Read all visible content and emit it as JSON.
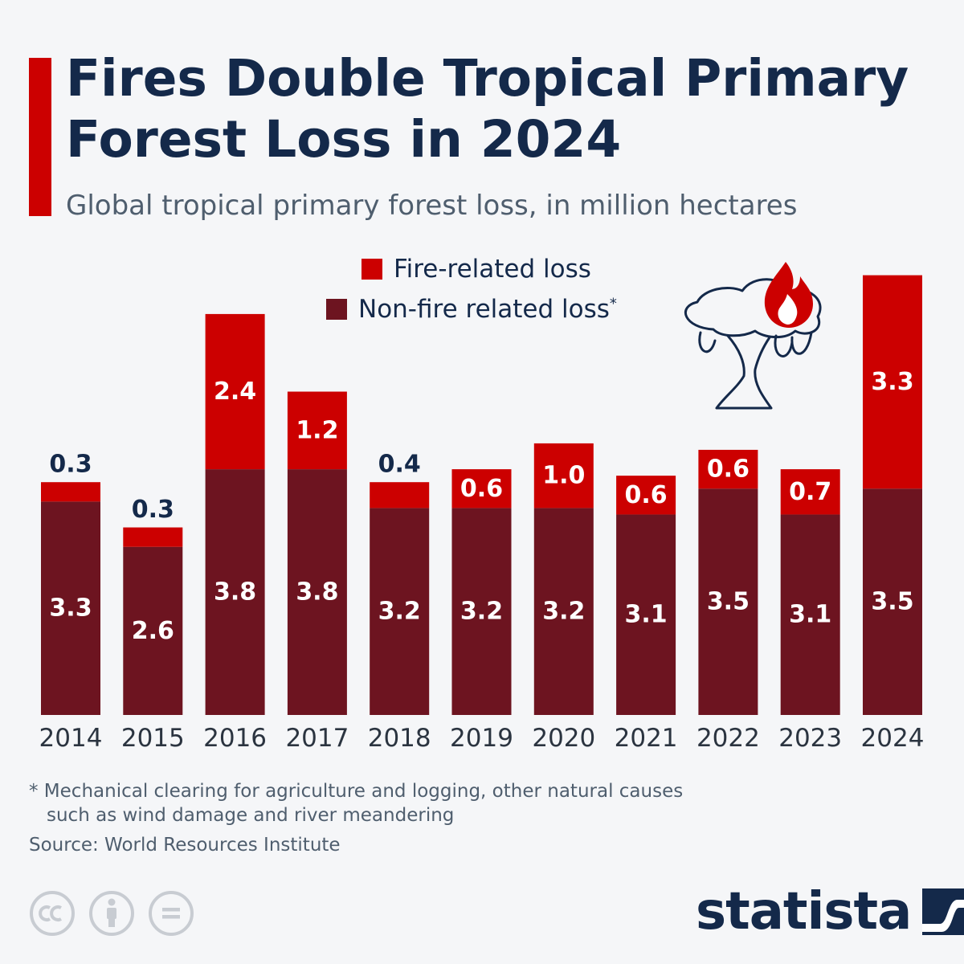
{
  "header": {
    "title": "Fires Double Tropical Primary Forest Loss in 2024",
    "subtitle": "Global tropical primary forest loss, in million hectares"
  },
  "legend": {
    "fire_label": "Fire-related loss",
    "nonfire_label": "Non-fire related loss",
    "nonfire_marker": "*"
  },
  "chart_data": {
    "type": "bar",
    "stacked": true,
    "title": "Fires Double Tropical Primary Forest Loss in 2024",
    "subtitle": "Global tropical primary forest loss, in million hectares",
    "xlabel": "",
    "ylabel": "million hectares",
    "ylim": [
      0,
      7
    ],
    "grid": false,
    "legend_position": "top-center",
    "categories": [
      "2014",
      "2015",
      "2016",
      "2017",
      "2018",
      "2019",
      "2020",
      "2021",
      "2022",
      "2023",
      "2024"
    ],
    "series": [
      {
        "name": "Non-fire related loss",
        "color": "#6d1420",
        "values": [
          3.3,
          2.6,
          3.8,
          3.8,
          3.2,
          3.2,
          3.2,
          3.1,
          3.5,
          3.1,
          3.5
        ]
      },
      {
        "name": "Fire-related loss",
        "color": "#cc0000",
        "values": [
          0.3,
          0.3,
          2.4,
          1.2,
          0.4,
          0.6,
          1.0,
          0.6,
          0.6,
          0.7,
          3.3
        ]
      }
    ]
  },
  "colors": {
    "fire": "#cc0000",
    "nonfire": "#6d1420",
    "title": "#14294a",
    "text": "#4f5e6e",
    "accent": "#cc0000"
  },
  "footer": {
    "footnote_line1": "* Mechanical clearing for agriculture and logging, other natural causes",
    "footnote_line2": "such as wind damage and river meandering",
    "source": "Source: World Resources Institute",
    "brand": "statista",
    "license_icons": [
      "cc-icon",
      "attribution-icon",
      "no-derivatives-icon"
    ]
  },
  "illustration": {
    "icon": "burning-tree-icon"
  }
}
